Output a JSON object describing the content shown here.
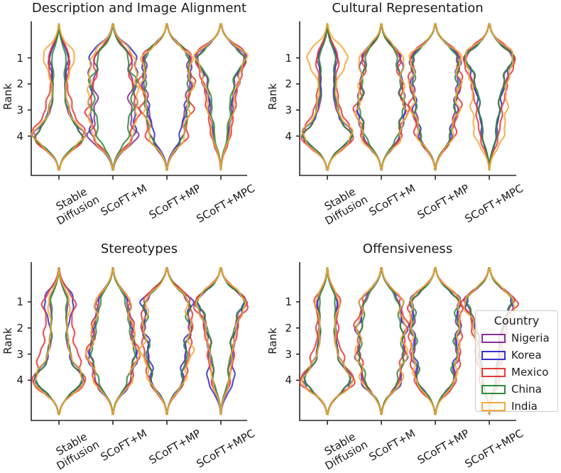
{
  "figure": {
    "legend": {
      "title": "Country",
      "items": [
        {
          "label": "Nigeria",
          "color": "#8A2E96"
        },
        {
          "label": "Korea",
          "color": "#3333CC"
        },
        {
          "label": "Mexico",
          "color": "#E63939"
        },
        {
          "label": "China",
          "color": "#2E8B3A"
        },
        {
          "label": "India",
          "color": "#F2A93B"
        }
      ]
    }
  },
  "chart_data": {
    "type": "violin",
    "layout": "2x2 grid of violin subplots, unfilled colored outlines per country",
    "ylabel": "Rank",
    "rank_ticks": [
      "1",
      "2",
      "3",
      "4"
    ],
    "rank_range": [
      1,
      4
    ],
    "categories": [
      "Stable Diffusion",
      "SCoFT+M",
      "SCoFT+MP",
      "SCoFT+MPC"
    ],
    "categories_display": [
      "Stable\nDiffusion",
      "SCoFT+M",
      "SCoFT+MP",
      "SCoFT+MPC"
    ],
    "countries": [
      "Nigeria",
      "Korea",
      "Mexico",
      "China",
      "India"
    ],
    "colors": {
      "Nigeria": "#8A2E96",
      "Korea": "#3333CC",
      "Mexico": "#E63939",
      "China": "#2E8B3A",
      "India": "#F2A93B"
    },
    "legend_position": "inside lower-right subplot, right side",
    "grid": false,
    "note_values": "rank_distributions are estimated probability mass at ranks 1-4 read from violin widths",
    "subplots": [
      {
        "title": "Description and Image Alignment",
        "rank_distributions": {
          "Stable Diffusion": {
            "Nigeria": [
              0.2,
              0.09,
              0.13,
              0.58
            ],
            "Korea": [
              0.16,
              0.1,
              0.16,
              0.58
            ],
            "Mexico": [
              0.16,
              0.11,
              0.22,
              0.51
            ],
            "China": [
              0.13,
              0.1,
              0.16,
              0.61
            ],
            "India": [
              0.28,
              0.09,
              0.13,
              0.5
            ]
          },
          "SCoFT+M": {
            "Nigeria": [
              0.22,
              0.24,
              0.21,
              0.33
            ],
            "Korea": [
              0.27,
              0.25,
              0.25,
              0.23
            ],
            "Mexico": [
              0.22,
              0.22,
              0.34,
              0.22
            ],
            "China": [
              0.2,
              0.34,
              0.26,
              0.2
            ],
            "India": [
              0.24,
              0.27,
              0.27,
              0.22
            ]
          },
          "SCoFT+MP": {
            "Nigeria": [
              0.29,
              0.3,
              0.22,
              0.19
            ],
            "Korea": [
              0.31,
              0.31,
              0.23,
              0.15
            ],
            "Mexico": [
              0.26,
              0.28,
              0.26,
              0.2
            ],
            "China": [
              0.28,
              0.27,
              0.26,
              0.19
            ],
            "India": [
              0.28,
              0.29,
              0.24,
              0.19
            ]
          },
          "SCoFT+MPC": {
            "Nigeria": [
              0.48,
              0.22,
              0.18,
              0.12
            ],
            "Korea": [
              0.46,
              0.27,
              0.16,
              0.11
            ],
            "Mexico": [
              0.44,
              0.25,
              0.19,
              0.12
            ],
            "China": [
              0.52,
              0.22,
              0.16,
              0.1
            ],
            "India": [
              0.46,
              0.25,
              0.18,
              0.11
            ]
          }
        }
      },
      {
        "title": "Cultural Representation",
        "rank_distributions": {
          "Stable Diffusion": {
            "Nigeria": [
              0.18,
              0.1,
              0.14,
              0.58
            ],
            "Korea": [
              0.16,
              0.1,
              0.16,
              0.58
            ],
            "Mexico": [
              0.17,
              0.12,
              0.2,
              0.51
            ],
            "China": [
              0.14,
              0.12,
              0.18,
              0.56
            ],
            "India": [
              0.34,
              0.1,
              0.13,
              0.43
            ]
          },
          "SCoFT+M": {
            "Nigeria": [
              0.23,
              0.24,
              0.31,
              0.22
            ],
            "Korea": [
              0.24,
              0.25,
              0.29,
              0.22
            ],
            "Mexico": [
              0.21,
              0.23,
              0.34,
              0.22
            ],
            "China": [
              0.21,
              0.26,
              0.32,
              0.21
            ],
            "India": [
              0.25,
              0.24,
              0.29,
              0.22
            ]
          },
          "SCoFT+MP": {
            "Nigeria": [
              0.3,
              0.28,
              0.24,
              0.18
            ],
            "Korea": [
              0.29,
              0.29,
              0.25,
              0.17
            ],
            "Mexico": [
              0.27,
              0.28,
              0.26,
              0.19
            ],
            "China": [
              0.29,
              0.28,
              0.25,
              0.18
            ],
            "India": [
              0.3,
              0.27,
              0.25,
              0.18
            ]
          },
          "SCoFT+MPC": {
            "Nigeria": [
              0.5,
              0.24,
              0.16,
              0.1
            ],
            "Korea": [
              0.48,
              0.26,
              0.16,
              0.1
            ],
            "Mexico": [
              0.44,
              0.26,
              0.18,
              0.12
            ],
            "China": [
              0.5,
              0.24,
              0.16,
              0.1
            ],
            "India": [
              0.37,
              0.22,
              0.23,
              0.18
            ]
          }
        }
      },
      {
        "title": "Stereotypes",
        "rank_distributions": {
          "Stable Diffusion": {
            "Nigeria": [
              0.16,
              0.12,
              0.17,
              0.55
            ],
            "Korea": [
              0.26,
              0.12,
              0.15,
              0.47
            ],
            "Mexico": [
              0.2,
              0.16,
              0.25,
              0.39
            ],
            "China": [
              0.14,
              0.12,
              0.2,
              0.54
            ],
            "India": [
              0.18,
              0.12,
              0.17,
              0.53
            ]
          },
          "SCoFT+M": {
            "Nigeria": [
              0.19,
              0.27,
              0.32,
              0.22
            ],
            "Korea": [
              0.2,
              0.24,
              0.33,
              0.23
            ],
            "Mexico": [
              0.19,
              0.23,
              0.36,
              0.22
            ],
            "China": [
              0.18,
              0.25,
              0.36,
              0.21
            ],
            "India": [
              0.2,
              0.25,
              0.33,
              0.22
            ]
          },
          "SCoFT+MP": {
            "Nigeria": [
              0.28,
              0.3,
              0.23,
              0.19
            ],
            "Korea": [
              0.32,
              0.29,
              0.21,
              0.18
            ],
            "Mexico": [
              0.27,
              0.29,
              0.25,
              0.19
            ],
            "China": [
              0.28,
              0.29,
              0.24,
              0.19
            ],
            "India": [
              0.24,
              0.27,
              0.3,
              0.19
            ]
          },
          "SCoFT+MPC": {
            "Nigeria": [
              0.49,
              0.23,
              0.16,
              0.12
            ],
            "Korea": [
              0.42,
              0.23,
              0.16,
              0.19
            ],
            "Mexico": [
              0.46,
              0.24,
              0.18,
              0.12
            ],
            "China": [
              0.5,
              0.23,
              0.16,
              0.11
            ],
            "India": [
              0.47,
              0.24,
              0.17,
              0.12
            ]
          }
        }
      },
      {
        "title": "Offensiveness",
        "rank_distributions": {
          "Stable Diffusion": {
            "Nigeria": [
              0.18,
              0.12,
              0.16,
              0.54
            ],
            "Korea": [
              0.17,
              0.13,
              0.17,
              0.53
            ],
            "Mexico": [
              0.18,
              0.13,
              0.21,
              0.48
            ],
            "China": [
              0.15,
              0.12,
              0.18,
              0.55
            ],
            "India": [
              0.2,
              0.11,
              0.15,
              0.54
            ]
          },
          "SCoFT+M": {
            "Nigeria": [
              0.22,
              0.26,
              0.3,
              0.22
            ],
            "Korea": [
              0.23,
              0.27,
              0.28,
              0.22
            ],
            "Mexico": [
              0.22,
              0.32,
              0.26,
              0.2
            ],
            "China": [
              0.21,
              0.27,
              0.31,
              0.21
            ],
            "India": [
              0.23,
              0.26,
              0.29,
              0.22
            ]
          },
          "SCoFT+MP": {
            "Nigeria": [
              0.28,
              0.26,
              0.25,
              0.21
            ],
            "Korea": [
              0.29,
              0.27,
              0.24,
              0.2
            ],
            "Mexico": [
              0.27,
              0.26,
              0.26,
              0.21
            ],
            "China": [
              0.28,
              0.27,
              0.25,
              0.2
            ],
            "India": [
              0.28,
              0.26,
              0.25,
              0.21
            ]
          },
          "SCoFT+MPC": {
            "Nigeria": [
              0.52,
              0.22,
              0.16,
              0.1
            ],
            "Korea": [
              0.5,
              0.24,
              0.16,
              0.1
            ],
            "Mexico": [
              0.46,
              0.24,
              0.18,
              0.12
            ],
            "China": [
              0.52,
              0.22,
              0.16,
              0.1
            ],
            "India": [
              0.48,
              0.24,
              0.17,
              0.11
            ]
          }
        }
      }
    ]
  }
}
